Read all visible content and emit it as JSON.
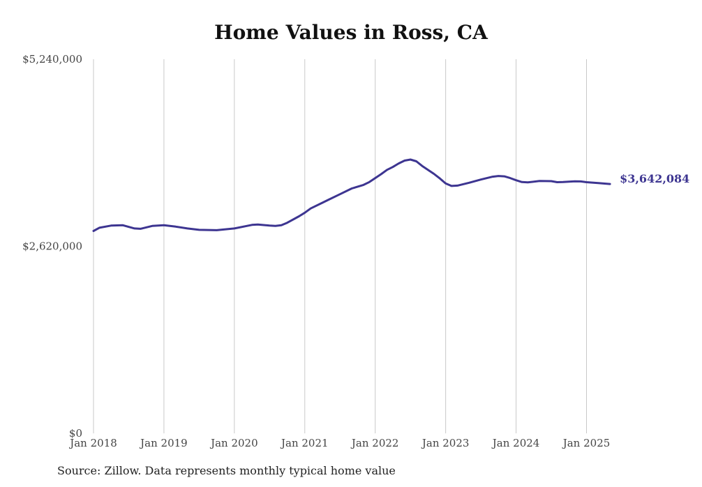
{
  "chart_data": {
    "type": "line",
    "title": "Home Values in Ross, CA",
    "source": "Source: Zillow. Data represents monthly typical home value",
    "ylim": [
      0,
      5240000
    ],
    "yticks": [
      {
        "value": 5240000,
        "label": "$5,240,000"
      },
      {
        "value": 2620000,
        "label": "$2,620,000"
      },
      {
        "value": 0,
        "label": "$0"
      }
    ],
    "xticks": [
      {
        "value": 2018.0,
        "label": "Jan 2018"
      },
      {
        "value": 2019.0,
        "label": "Jan 2019"
      },
      {
        "value": 2020.0,
        "label": "Jan 2020"
      },
      {
        "value": 2021.0,
        "label": "Jan 2021"
      },
      {
        "value": 2022.0,
        "label": "Jan 2022"
      },
      {
        "value": 2023.0,
        "label": "Jan 2023"
      },
      {
        "value": 2024.0,
        "label": "Jan 2024"
      },
      {
        "value": 2025.0,
        "label": "Jan 2025"
      }
    ],
    "xlim": [
      2018.0,
      2025.5
    ],
    "grid": "vertical",
    "line_color": "#3d3591",
    "end_label": "$3,642,084",
    "series": [
      {
        "points": [
          [
            2018.0,
            2835000
          ],
          [
            2018.083,
            2880000
          ],
          [
            2018.25,
            2910000
          ],
          [
            2018.417,
            2915000
          ],
          [
            2018.583,
            2870000
          ],
          [
            2018.667,
            2865000
          ],
          [
            2018.833,
            2905000
          ],
          [
            2019.0,
            2915000
          ],
          [
            2019.167,
            2895000
          ],
          [
            2019.333,
            2870000
          ],
          [
            2019.5,
            2850000
          ],
          [
            2019.75,
            2845000
          ],
          [
            2020.0,
            2870000
          ],
          [
            2020.25,
            2920000
          ],
          [
            2020.333,
            2925000
          ],
          [
            2020.5,
            2910000
          ],
          [
            2020.583,
            2905000
          ],
          [
            2020.667,
            2915000
          ],
          [
            2020.75,
            2950000
          ],
          [
            2020.917,
            3040000
          ],
          [
            2021.0,
            3090000
          ],
          [
            2021.083,
            3150000
          ],
          [
            2021.25,
            3230000
          ],
          [
            2021.333,
            3270000
          ],
          [
            2021.5,
            3350000
          ],
          [
            2021.667,
            3430000
          ],
          [
            2021.833,
            3480000
          ],
          [
            2021.917,
            3520000
          ],
          [
            2022.0,
            3575000
          ],
          [
            2022.083,
            3630000
          ],
          [
            2022.167,
            3690000
          ],
          [
            2022.25,
            3730000
          ],
          [
            2022.333,
            3780000
          ],
          [
            2022.417,
            3820000
          ],
          [
            2022.5,
            3835000
          ],
          [
            2022.583,
            3810000
          ],
          [
            2022.667,
            3745000
          ],
          [
            2022.833,
            3635000
          ],
          [
            2022.917,
            3570000
          ],
          [
            2023.0,
            3500000
          ],
          [
            2023.083,
            3465000
          ],
          [
            2023.167,
            3470000
          ],
          [
            2023.333,
            3510000
          ],
          [
            2023.5,
            3555000
          ],
          [
            2023.667,
            3595000
          ],
          [
            2023.75,
            3605000
          ],
          [
            2023.833,
            3600000
          ],
          [
            2023.917,
            3575000
          ],
          [
            2024.0,
            3545000
          ],
          [
            2024.083,
            3520000
          ],
          [
            2024.167,
            3515000
          ],
          [
            2024.333,
            3535000
          ],
          [
            2024.5,
            3532000
          ],
          [
            2024.583,
            3518000
          ],
          [
            2024.667,
            3520000
          ],
          [
            2024.833,
            3530000
          ],
          [
            2024.917,
            3528000
          ],
          [
            2025.0,
            3518000
          ],
          [
            2025.167,
            3505000
          ],
          [
            2025.333,
            3642084
          ]
        ]
      }
    ]
  }
}
